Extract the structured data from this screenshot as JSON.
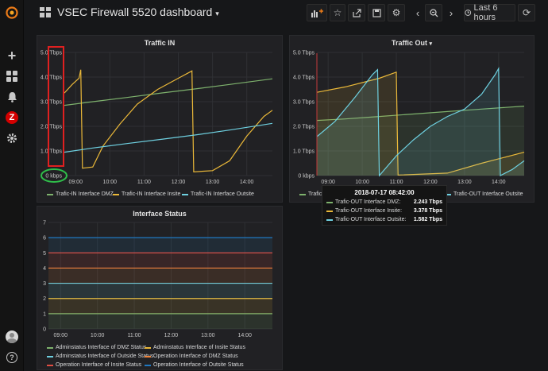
{
  "header": {
    "title": "VSEC Firewall 5520 dashboard",
    "time_range": "Last 6 hours",
    "icons": [
      "add-panel-icon",
      "star-icon",
      "share-icon",
      "save-icon",
      "gear-icon",
      "chevron-left-icon",
      "zoom-out-icon",
      "chevron-right-icon",
      "clock-icon",
      "refresh-icon"
    ]
  },
  "sidebar": {
    "icons": [
      "grafana-logo-icon",
      "plus-icon",
      "dashboards-icon",
      "bell-icon",
      "zabbix-icon",
      "gear-icon",
      "avatar-icon",
      "help-icon"
    ],
    "zabbix_letter": "Z",
    "help_glyph": "?"
  },
  "colors": {
    "green": "#7eb26d",
    "yellow": "#eab839",
    "blue": "#6ed0e0",
    "orange": "#ef843c",
    "red": "#e24d42",
    "dblue": "#1f78c1"
  },
  "panel_in": {
    "title": "Traffic IN",
    "legend": [
      "Trafic-IN Interface DMZ",
      "Trafic-IN Interface Insite",
      "Trafic-IN Interface Outsite"
    ]
  },
  "panel_out": {
    "title": "Traffic Out",
    "legend": [
      "Trafic-OUT Interface DMZ",
      "Trafic-OUT Interface Insite",
      "Trafic-OUT Interface Outsite"
    ],
    "legend_visible": [
      "Trafic-C",
      "Trafic-OUT Interface Outsite"
    ]
  },
  "tooltip": {
    "time": "2018-07-17 08:42:00",
    "rows": [
      {
        "label": "Trafic-OUT Interface DMZ:",
        "value": "2.243 Tbps"
      },
      {
        "label": "Trafic-OUT Interface Insite:",
        "value": "3.378 Tbps"
      },
      {
        "label": "Trafic-OUT Interface Outsite:",
        "value": "1.582 Tbps"
      }
    ]
  },
  "panel_status": {
    "title": "Interface Status",
    "legend": [
      "Adminstatus Interface of DMZ Status",
      "Adminstatus Interface of Insite Status",
      "Adminstatus Interface of Outside Status",
      "Operation Interface of DMZ Status",
      "Operation Interface of Insite Status",
      "Operation Interface of Outsite Status"
    ]
  },
  "chart_data": [
    {
      "type": "line",
      "title": "Traffic IN",
      "x_ticks": [
        "09:00",
        "10:00",
        "11:00",
        "12:00",
        "13:00",
        "14:00"
      ],
      "y_ticks": [
        "0 kbps",
        "1.0 Tbps",
        "2.0 Tbps",
        "3.0 Tbps",
        "4.0 Tbps",
        "5.0 Tbps"
      ],
      "ylim": [
        0,
        5
      ],
      "x_range_hours": [
        8.67,
        14.75
      ],
      "series": [
        {
          "name": "Trafic-IN Interface DMZ",
          "points": [
            [
              8.67,
              2.85
            ],
            [
              9.5,
              3.0
            ],
            [
              10.5,
              3.17
            ],
            [
              11.5,
              3.35
            ],
            [
              12.5,
              3.52
            ],
            [
              13.5,
              3.7
            ],
            [
              14.75,
              3.93
            ]
          ]
        },
        {
          "name": "Trafic-IN Interface Insite",
          "points": [
            [
              8.67,
              3.35
            ],
            [
              8.9,
              3.7
            ],
            [
              9.1,
              3.95
            ],
            [
              9.15,
              4.3
            ],
            [
              9.2,
              0.3
            ],
            [
              9.5,
              0.35
            ],
            [
              9.8,
              1.2
            ],
            [
              10.3,
              2.1
            ],
            [
              10.8,
              2.9
            ],
            [
              11.4,
              3.5
            ],
            [
              12.0,
              3.95
            ],
            [
              12.4,
              4.25
            ],
            [
              12.45,
              0.15
            ],
            [
              13.0,
              0.2
            ],
            [
              13.5,
              0.6
            ],
            [
              14.0,
              1.6
            ],
            [
              14.5,
              2.4
            ],
            [
              14.75,
              2.65
            ]
          ]
        },
        {
          "name": "Trafic-IN Interface Outsite",
          "points": [
            [
              8.67,
              0.95
            ],
            [
              9.5,
              1.12
            ],
            [
              10.5,
              1.3
            ],
            [
              11.5,
              1.47
            ],
            [
              12.5,
              1.65
            ],
            [
              13.5,
              1.85
            ],
            [
              14.75,
              2.12
            ]
          ]
        }
      ]
    },
    {
      "type": "area",
      "title": "Traffic Out",
      "x_ticks": [
        "09:00",
        "10:00",
        "11:00",
        "12:00",
        "13:00",
        "14:00"
      ],
      "y_ticks": [
        "0 kbps",
        "1.0 Tbps",
        "2.0 Tbps",
        "3.0 Tbps",
        "4.0 Tbps",
        "5.0 Tbps"
      ],
      "ylim": [
        0,
        5
      ],
      "x_range_hours": [
        8.67,
        14.75
      ],
      "series": [
        {
          "name": "Trafic-OUT Interface DMZ",
          "points": [
            [
              8.67,
              2.24
            ],
            [
              9.5,
              2.3
            ],
            [
              10.5,
              2.4
            ],
            [
              11.5,
              2.5
            ],
            [
              12.5,
              2.6
            ],
            [
              13.5,
              2.7
            ],
            [
              14.75,
              2.82
            ]
          ]
        },
        {
          "name": "Trafic-OUT Interface Insite",
          "points": [
            [
              8.67,
              3.38
            ],
            [
              9.5,
              3.6
            ],
            [
              10.5,
              3.95
            ],
            [
              11.0,
              4.2
            ],
            [
              11.05,
              0.02
            ],
            [
              12.5,
              0.1
            ],
            [
              13.5,
              0.5
            ],
            [
              14.75,
              0.95
            ]
          ]
        },
        {
          "name": "Trafic-OUT Interface Outsite",
          "points": [
            [
              8.67,
              1.58
            ],
            [
              9.2,
              2.2
            ],
            [
              9.8,
              3.2
            ],
            [
              10.3,
              4.1
            ],
            [
              10.45,
              4.3
            ],
            [
              10.5,
              0.0
            ],
            [
              11.0,
              0.8
            ],
            [
              11.5,
              1.45
            ],
            [
              12.0,
              2.0
            ],
            [
              12.5,
              2.4
            ],
            [
              13.0,
              2.7
            ],
            [
              13.5,
              3.3
            ],
            [
              13.9,
              4.1
            ],
            [
              14.0,
              4.35
            ],
            [
              14.05,
              0.0
            ],
            [
              14.4,
              0.25
            ],
            [
              14.75,
              0.6
            ]
          ]
        }
      ]
    },
    {
      "type": "line",
      "title": "Interface Status",
      "x_ticks": [
        "09:00",
        "10:00",
        "11:00",
        "12:00",
        "13:00",
        "14:00"
      ],
      "y_ticks": [
        "0",
        "1",
        "2",
        "3",
        "4",
        "5",
        "6",
        "7"
      ],
      "ylim": [
        0,
        7
      ],
      "x_range_hours": [
        8.67,
        14.75
      ],
      "series": [
        {
          "name": "Adminstatus Interface of DMZ Status",
          "value": 1
        },
        {
          "name": "Adminstatus Interface of Insite Status",
          "value": 2
        },
        {
          "name": "Adminstatus Interface of Outside Status",
          "value": 3
        },
        {
          "name": "Operation Interface of DMZ Status",
          "value": 4
        },
        {
          "name": "Operation Interface of Insite Status",
          "value": 5
        },
        {
          "name": "Operation Interface of Outsite Status",
          "value": 6
        }
      ]
    }
  ]
}
